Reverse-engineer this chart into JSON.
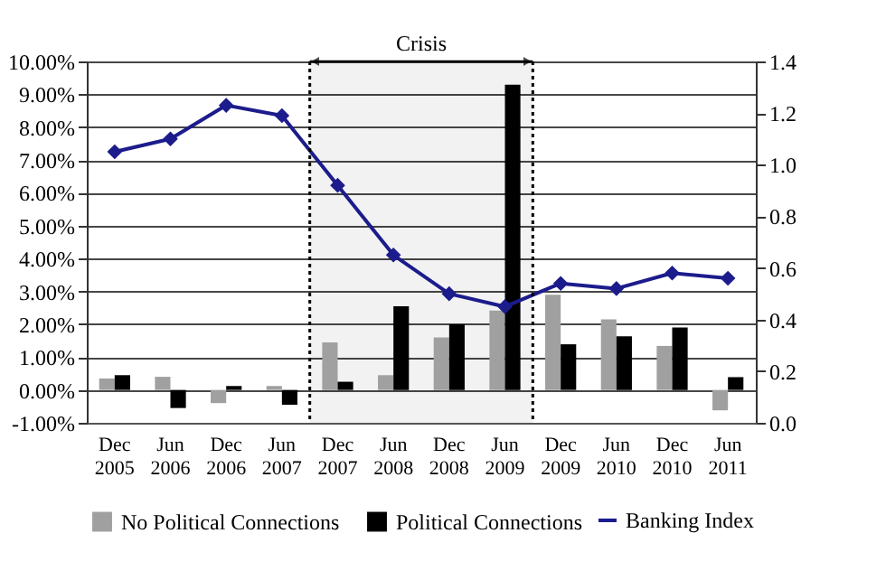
{
  "chart_data": {
    "type": "bar",
    "categories": [
      "Dec 2005",
      "Jun 2006",
      "Dec 2006",
      "Jun 2007",
      "Dec 2007",
      "Jun 2008",
      "Dec 2008",
      "Jun 2009",
      "Dec 2009",
      "Jun 2010",
      "Dec 2010",
      "Jun 2011"
    ],
    "series": [
      {
        "name": "No Political Connections",
        "color": "#a0a0a0",
        "values": [
          0.35,
          0.4,
          -0.4,
          0.12,
          1.45,
          0.45,
          1.6,
          2.42,
          2.9,
          2.15,
          1.34,
          -0.62
        ]
      },
      {
        "name": "Political Connections",
        "color": "#000000",
        "values": [
          0.45,
          -0.55,
          0.12,
          -0.45,
          0.25,
          2.55,
          2.0,
          9.29,
          1.39,
          1.63,
          1.9,
          0.39
        ]
      },
      {
        "name": "Banking Index",
        "color": "#1c1c8c",
        "type": "line",
        "axis": "y2",
        "marker": "diamond",
        "values": [
          1.05,
          1.1,
          1.23,
          1.19,
          0.92,
          0.65,
          0.5,
          0.45,
          0.54,
          0.52,
          0.58,
          0.56
        ]
      }
    ],
    "ylim": [
      -1,
      10
    ],
    "yticks": [
      {
        "value": -1,
        "label": "-1.00%"
      },
      {
        "value": 0,
        "label": "0.00%"
      },
      {
        "value": 1,
        "label": "1.00%"
      },
      {
        "value": 2,
        "label": "2.00%"
      },
      {
        "value": 3,
        "label": "3.00%"
      },
      {
        "value": 4,
        "label": "4.00%"
      },
      {
        "value": 5,
        "label": "5.00%"
      },
      {
        "value": 6,
        "label": "6.00%"
      },
      {
        "value": 7,
        "label": "7.00%"
      },
      {
        "value": 8,
        "label": "8.00%"
      },
      {
        "value": 9,
        "label": "9.00%"
      },
      {
        "value": 10,
        "label": "10.00%"
      }
    ],
    "y2lim": [
      0,
      1.4
    ],
    "y2ticks": [
      {
        "value": 0,
        "label": "0.0"
      },
      {
        "value": 0.2,
        "label": "0.2"
      },
      {
        "value": 0.4,
        "label": "0.4"
      },
      {
        "value": 0.6,
        "label": "0.6"
      },
      {
        "value": 0.8,
        "label": "0.8"
      },
      {
        "value": 1,
        "label": "1.0"
      },
      {
        "value": 1.2,
        "label": "1.2"
      },
      {
        "value": 1.4,
        "label": "1.4"
      }
    ],
    "bands": [
      {
        "axis": "x",
        "from": "Dec 2007",
        "to": "Jun 2009",
        "label": "Crisis"
      }
    ],
    "grid": "y",
    "legend": "bottom"
  }
}
